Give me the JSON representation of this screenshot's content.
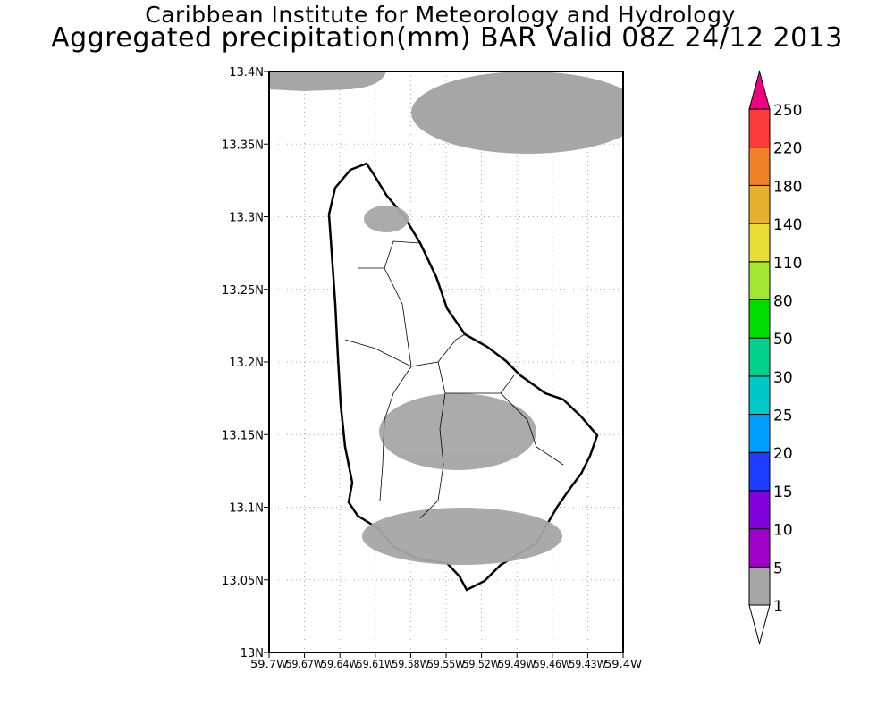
{
  "title": "Caribbean Institute for Meteorology and Hydrology",
  "subtitle": "Aggregated precipitation(mm) BAR Valid 08Z 24/12 2013",
  "chart_data": {
    "type": "map",
    "variable": "Aggregated precipitation (mm)",
    "region": "Barbados",
    "lat_range": [
      13.0,
      13.4
    ],
    "lon_range": [
      -59.7,
      -59.4
    ],
    "y_ticks": [
      "13N",
      "13.05N",
      "13.1N",
      "13.15N",
      "13.2N",
      "13.25N",
      "13.3N",
      "13.35N",
      "13.4N"
    ],
    "x_ticks": [
      "59.7W",
      "59.67W",
      "59.64W",
      "59.61W",
      "59.58W",
      "59.55W",
      "59.52W",
      "59.49W",
      "59.46W",
      "59.43W",
      "59.4W"
    ],
    "grid": true,
    "colorbar": {
      "levels": [
        "1",
        "5",
        "10",
        "15",
        "20",
        "25",
        "30",
        "50",
        "80",
        "110",
        "140",
        "180",
        "220",
        "250"
      ],
      "colors": [
        "#ffffff",
        "#a6a6a6",
        "#a000c8",
        "#8200dc",
        "#1e3cff",
        "#00a0ff",
        "#00c8c8",
        "#00d28c",
        "#00dc00",
        "#a0e632",
        "#e6dc32",
        "#e6af2d",
        "#f08228",
        "#fa3c3c",
        "#f00082"
      ]
    },
    "precip_areas": [
      {
        "location": "north-west offshore",
        "lat": 13.395,
        "lon": -59.66,
        "class": "1-5"
      },
      {
        "location": "north-east offshore",
        "lat": 13.37,
        "lon": -59.49,
        "class": "1-5"
      },
      {
        "location": "north island",
        "lat": 13.298,
        "lon": -59.62,
        "class": "1-5"
      },
      {
        "location": "central island",
        "lat": 13.15,
        "lon": -59.56,
        "class": "1-5"
      },
      {
        "location": "south coast",
        "lat": 13.08,
        "lon": -59.55,
        "class": "1-5"
      }
    ]
  }
}
